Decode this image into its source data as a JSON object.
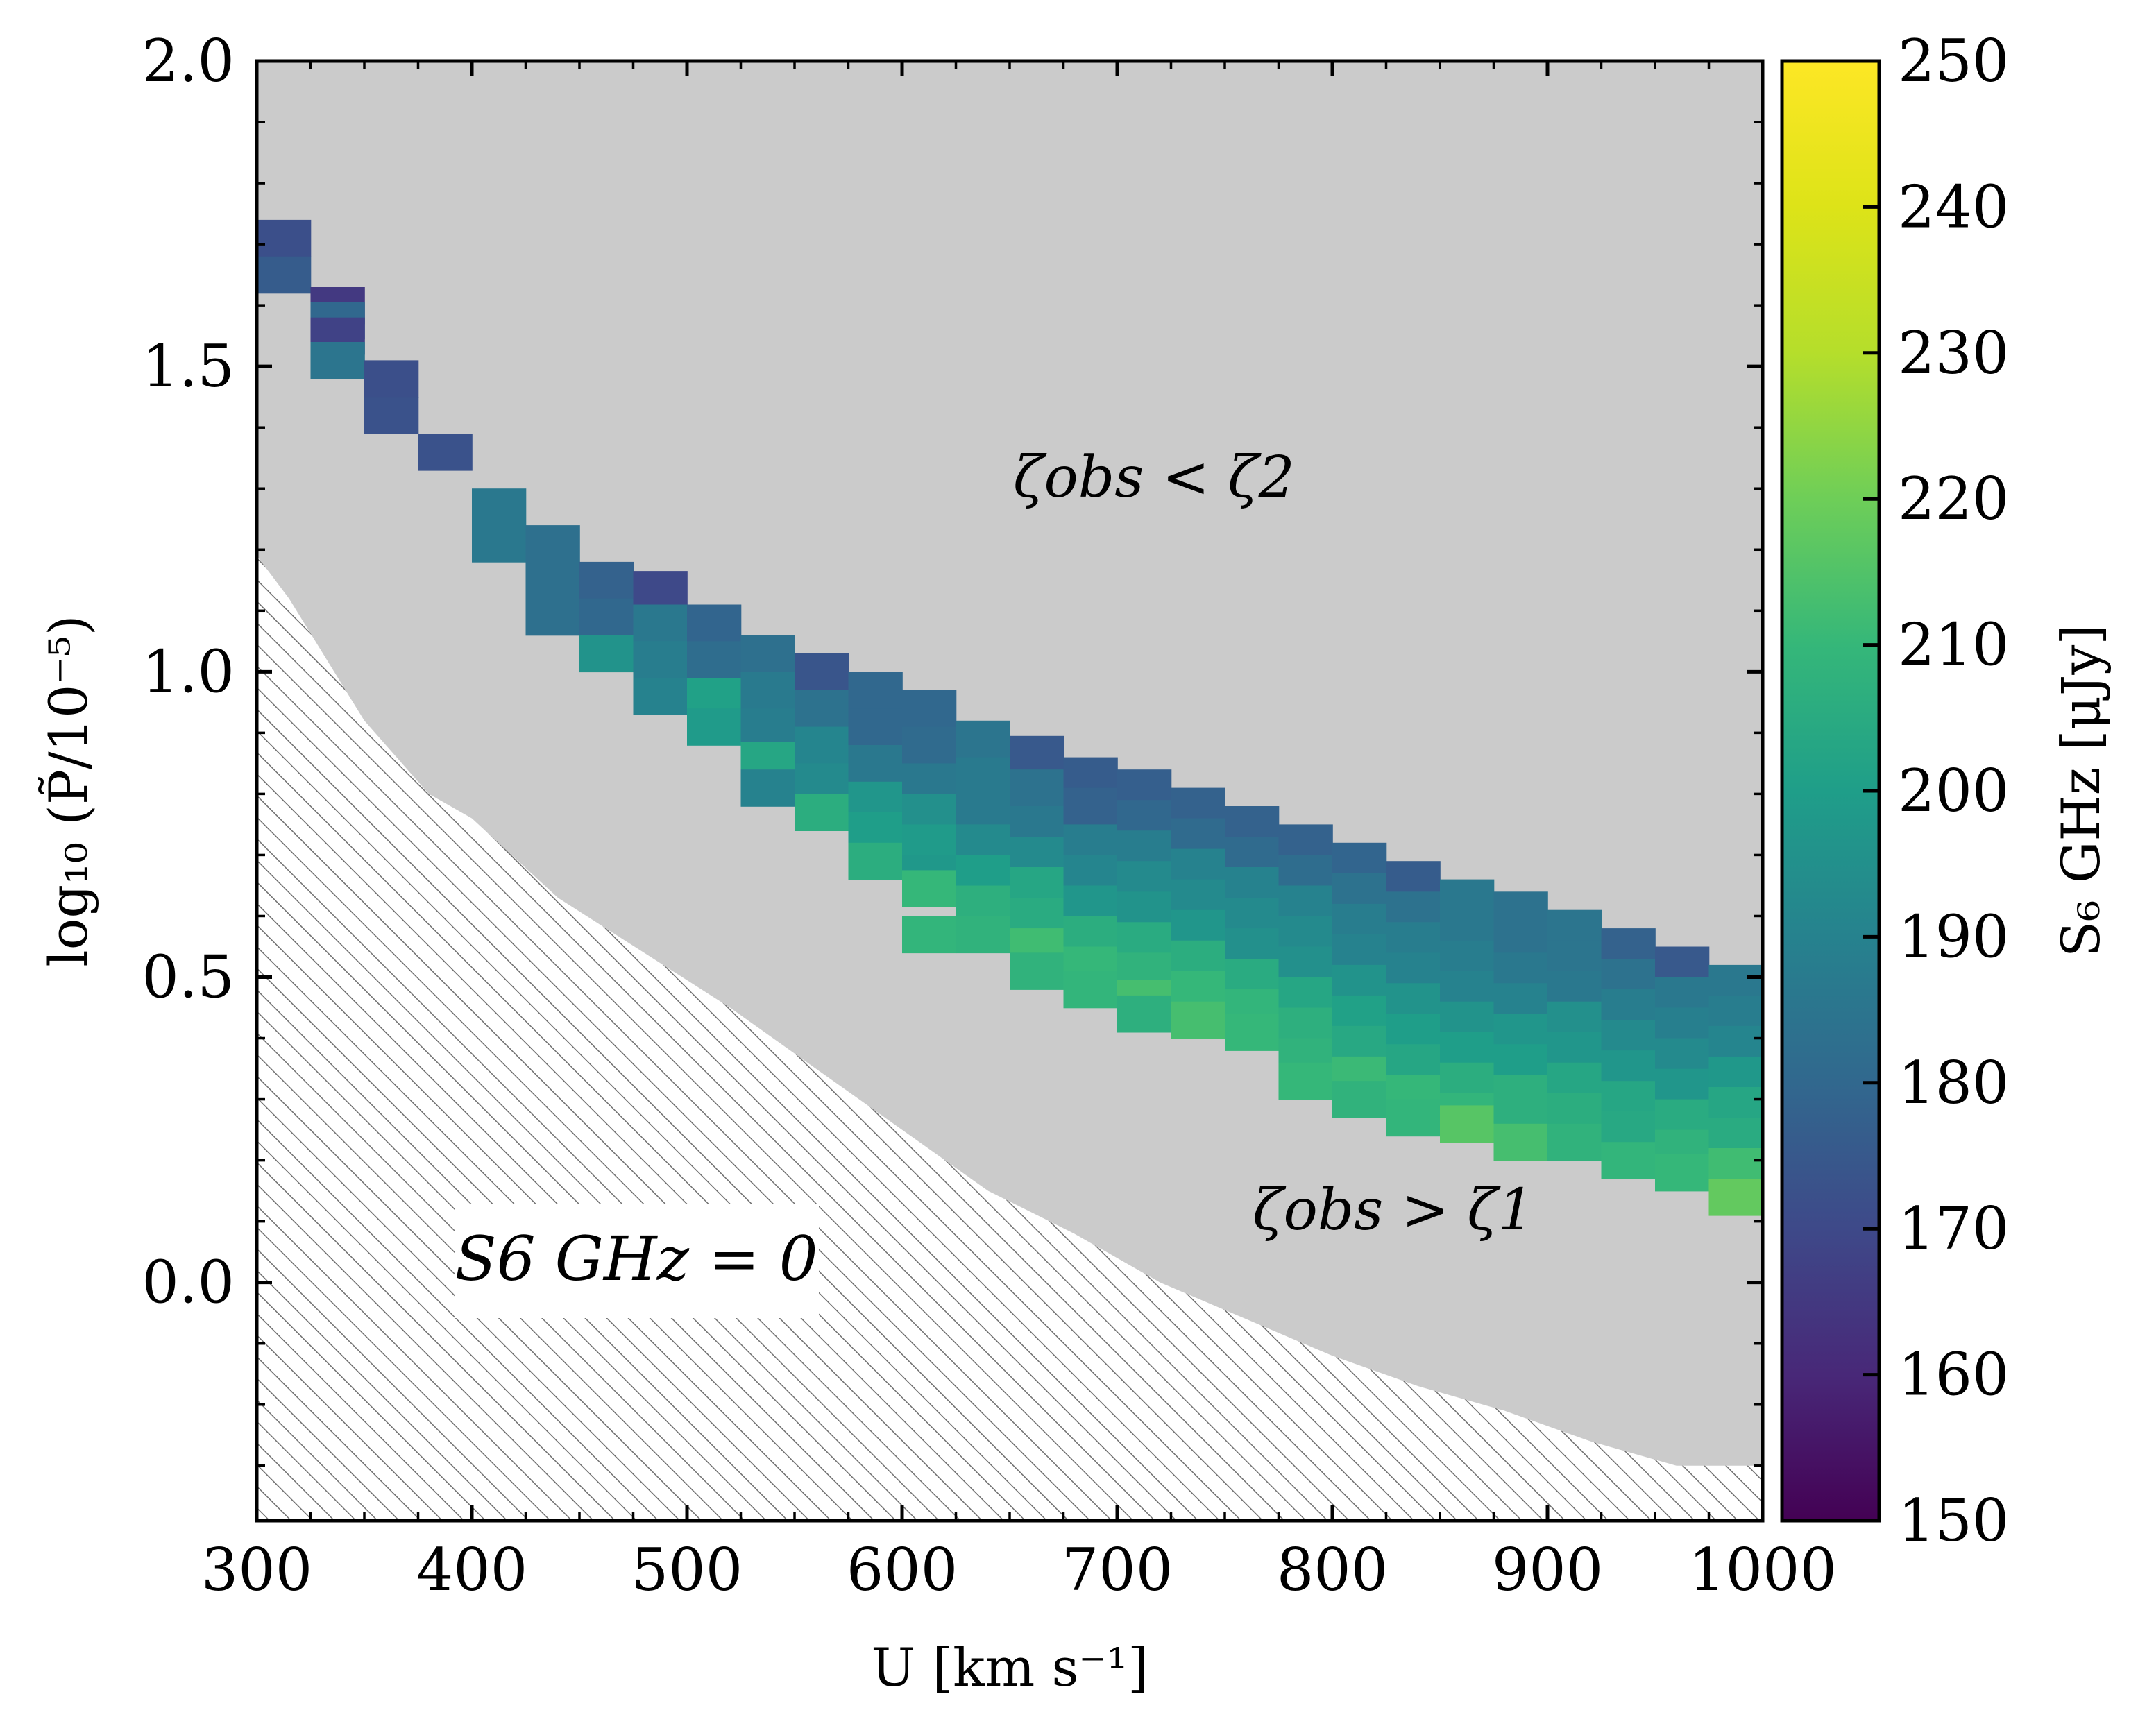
{
  "chart_data": {
    "type": "heatmap",
    "xlabel": "U [km s⁻¹]",
    "ylabel": "log₁₀ (P̃/10⁻⁵)",
    "xlim": [
      300,
      1000
    ],
    "ylim": [
      -0.39,
      2.0
    ],
    "x_ticks": [
      300,
      400,
      500,
      600,
      700,
      800,
      900,
      1000
    ],
    "x_tick_labels": [
      "300",
      "400",
      "500",
      "600",
      "700",
      "800",
      "900",
      "1000"
    ],
    "y_ticks": [
      0.0,
      0.5,
      1.0,
      1.5,
      2.0
    ],
    "y_tick_labels": [
      "0.0",
      "0.5",
      "1.0",
      "1.5",
      "2.0"
    ],
    "colorbar": {
      "label": "S₆ GHz [μJy]",
      "min": 150,
      "max": 250,
      "ticks": [
        150,
        160,
        170,
        180,
        190,
        200,
        210,
        220,
        230,
        240,
        250
      ],
      "tick_labels": [
        "150",
        "160",
        "170",
        "180",
        "190",
        "200",
        "210",
        "220",
        "230",
        "240",
        "250"
      ],
      "colormap": "viridis"
    },
    "annotations": {
      "upper_region": "ζobs < ζ2",
      "lower_region": "ζobs > ζ1",
      "hatched_region": "S6 GHz = 0"
    },
    "cell_width_units": 25,
    "cell_height_units": 0.06,
    "hatched_boundary": {
      "x": [
        300,
        315,
        350,
        380,
        400,
        440,
        480,
        520,
        560,
        600,
        640,
        680,
        720,
        760,
        800,
        840,
        880,
        920,
        960,
        1000
      ],
      "y": [
        1.19,
        1.12,
        0.92,
        0.8,
        0.76,
        0.63,
        0.54,
        0.45,
        0.35,
        0.25,
        0.15,
        0.08,
        0.0,
        -0.06,
        -0.12,
        -0.17,
        -0.21,
        -0.26,
        -0.3,
        -0.3
      ]
    },
    "cells": [
      {
        "x": 300,
        "y": 1.71,
        "v": 172
      },
      {
        "x": 300,
        "y": 1.65,
        "v": 176
      },
      {
        "x": 325,
        "y": 1.6,
        "v": 165
      },
      {
        "x": 325,
        "y": 1.575,
        "v": 180
      },
      {
        "x": 325,
        "y": 1.55,
        "v": 168
      },
      {
        "x": 325,
        "y": 1.51,
        "v": 185
      },
      {
        "x": 350,
        "y": 1.48,
        "v": 172
      },
      {
        "x": 350,
        "y": 1.42,
        "v": 173
      },
      {
        "x": 375,
        "y": 1.36,
        "v": 173
      },
      {
        "x": 400,
        "y": 1.27,
        "v": 186
      },
      {
        "x": 400,
        "y": 1.21,
        "v": 186
      },
      {
        "x": 425,
        "y": 1.21,
        "v": 183
      },
      {
        "x": 425,
        "y": 1.15,
        "v": 183
      },
      {
        "x": 425,
        "y": 1.09,
        "v": 183
      },
      {
        "x": 450,
        "y": 1.15,
        "v": 178
      },
      {
        "x": 450,
        "y": 1.09,
        "v": 180
      },
      {
        "x": 450,
        "y": 1.03,
        "v": 196
      },
      {
        "x": 475,
        "y": 1.135,
        "v": 170
      },
      {
        "x": 475,
        "y": 1.08,
        "v": 186
      },
      {
        "x": 475,
        "y": 1.02,
        "v": 188
      },
      {
        "x": 475,
        "y": 0.96,
        "v": 190
      },
      {
        "x": 500,
        "y": 1.08,
        "v": 179
      },
      {
        "x": 500,
        "y": 1.02,
        "v": 182
      },
      {
        "x": 500,
        "y": 0.96,
        "v": 201
      },
      {
        "x": 500,
        "y": 0.91,
        "v": 199
      },
      {
        "x": 525,
        "y": 1.03,
        "v": 183
      },
      {
        "x": 525,
        "y": 0.97,
        "v": 187
      },
      {
        "x": 525,
        "y": 0.91,
        "v": 188
      },
      {
        "x": 525,
        "y": 0.855,
        "v": 203
      },
      {
        "x": 525,
        "y": 0.81,
        "v": 190
      },
      {
        "x": 550,
        "y": 1.0,
        "v": 174
      },
      {
        "x": 550,
        "y": 0.94,
        "v": 184
      },
      {
        "x": 550,
        "y": 0.88,
        "v": 191
      },
      {
        "x": 550,
        "y": 0.82,
        "v": 193
      },
      {
        "x": 550,
        "y": 0.77,
        "v": 206
      },
      {
        "x": 575,
        "y": 0.97,
        "v": 180
      },
      {
        "x": 575,
        "y": 0.91,
        "v": 180
      },
      {
        "x": 575,
        "y": 0.85,
        "v": 186
      },
      {
        "x": 575,
        "y": 0.79,
        "v": 197
      },
      {
        "x": 575,
        "y": 0.74,
        "v": 200
      },
      {
        "x": 575,
        "y": 0.69,
        "v": 206
      },
      {
        "x": 600,
        "y": 0.94,
        "v": 180
      },
      {
        "x": 600,
        "y": 0.88,
        "v": 181
      },
      {
        "x": 600,
        "y": 0.82,
        "v": 186
      },
      {
        "x": 600,
        "y": 0.77,
        "v": 195
      },
      {
        "x": 600,
        "y": 0.72,
        "v": 199
      },
      {
        "x": 600,
        "y": 0.67,
        "v": 198
      },
      {
        "x": 600,
        "y": 0.645,
        "v": 210
      },
      {
        "x": 600,
        "y": 0.57,
        "v": 209
      },
      {
        "x": 625,
        "y": 0.89,
        "v": 185
      },
      {
        "x": 625,
        "y": 0.83,
        "v": 187
      },
      {
        "x": 625,
        "y": 0.77,
        "v": 187
      },
      {
        "x": 625,
        "y": 0.72,
        "v": 193
      },
      {
        "x": 625,
        "y": 0.67,
        "v": 200
      },
      {
        "x": 625,
        "y": 0.62,
        "v": 207
      },
      {
        "x": 625,
        "y": 0.57,
        "v": 208
      },
      {
        "x": 650,
        "y": 0.865,
        "v": 175
      },
      {
        "x": 650,
        "y": 0.81,
        "v": 184
      },
      {
        "x": 650,
        "y": 0.75,
        "v": 186
      },
      {
        "x": 650,
        "y": 0.7,
        "v": 193
      },
      {
        "x": 650,
        "y": 0.65,
        "v": 203
      },
      {
        "x": 650,
        "y": 0.6,
        "v": 205
      },
      {
        "x": 650,
        "y": 0.55,
        "v": 212
      },
      {
        "x": 650,
        "y": 0.51,
        "v": 208
      },
      {
        "x": 675,
        "y": 0.83,
        "v": 176
      },
      {
        "x": 675,
        "y": 0.78,
        "v": 178
      },
      {
        "x": 675,
        "y": 0.72,
        "v": 188
      },
      {
        "x": 675,
        "y": 0.67,
        "v": 191
      },
      {
        "x": 675,
        "y": 0.62,
        "v": 197
      },
      {
        "x": 675,
        "y": 0.57,
        "v": 206
      },
      {
        "x": 675,
        "y": 0.52,
        "v": 210
      },
      {
        "x": 675,
        "y": 0.48,
        "v": 209
      },
      {
        "x": 700,
        "y": 0.81,
        "v": 177
      },
      {
        "x": 700,
        "y": 0.76,
        "v": 180
      },
      {
        "x": 700,
        "y": 0.71,
        "v": 188
      },
      {
        "x": 700,
        "y": 0.66,
        "v": 193
      },
      {
        "x": 700,
        "y": 0.61,
        "v": 196
      },
      {
        "x": 700,
        "y": 0.56,
        "v": 205
      },
      {
        "x": 700,
        "y": 0.51,
        "v": 208
      },
      {
        "x": 700,
        "y": 0.465,
        "v": 213
      },
      {
        "x": 700,
        "y": 0.44,
        "v": 207
      },
      {
        "x": 725,
        "y": 0.78,
        "v": 178
      },
      {
        "x": 725,
        "y": 0.73,
        "v": 181
      },
      {
        "x": 725,
        "y": 0.68,
        "v": 190
      },
      {
        "x": 725,
        "y": 0.63,
        "v": 193
      },
      {
        "x": 725,
        "y": 0.58,
        "v": 197
      },
      {
        "x": 725,
        "y": 0.53,
        "v": 206
      },
      {
        "x": 725,
        "y": 0.48,
        "v": 210
      },
      {
        "x": 725,
        "y": 0.43,
        "v": 213
      },
      {
        "x": 750,
        "y": 0.75,
        "v": 178
      },
      {
        "x": 750,
        "y": 0.7,
        "v": 181
      },
      {
        "x": 750,
        "y": 0.65,
        "v": 190
      },
      {
        "x": 750,
        "y": 0.6,
        "v": 193
      },
      {
        "x": 750,
        "y": 0.55,
        "v": 195
      },
      {
        "x": 750,
        "y": 0.5,
        "v": 205
      },
      {
        "x": 750,
        "y": 0.45,
        "v": 209
      },
      {
        "x": 750,
        "y": 0.41,
        "v": 210
      },
      {
        "x": 775,
        "y": 0.72,
        "v": 178
      },
      {
        "x": 775,
        "y": 0.67,
        "v": 182
      },
      {
        "x": 775,
        "y": 0.62,
        "v": 190
      },
      {
        "x": 775,
        "y": 0.57,
        "v": 193
      },
      {
        "x": 775,
        "y": 0.52,
        "v": 195
      },
      {
        "x": 775,
        "y": 0.47,
        "v": 203
      },
      {
        "x": 775,
        "y": 0.42,
        "v": 207
      },
      {
        "x": 775,
        "y": 0.37,
        "v": 208
      },
      {
        "x": 775,
        "y": 0.33,
        "v": 210
      },
      {
        "x": 800,
        "y": 0.69,
        "v": 179
      },
      {
        "x": 800,
        "y": 0.64,
        "v": 184
      },
      {
        "x": 800,
        "y": 0.59,
        "v": 188
      },
      {
        "x": 800,
        "y": 0.54,
        "v": 190
      },
      {
        "x": 800,
        "y": 0.49,
        "v": 196
      },
      {
        "x": 800,
        "y": 0.44,
        "v": 201
      },
      {
        "x": 800,
        "y": 0.39,
        "v": 204
      },
      {
        "x": 800,
        "y": 0.34,
        "v": 211
      },
      {
        "x": 800,
        "y": 0.3,
        "v": 208
      },
      {
        "x": 825,
        "y": 0.66,
        "v": 176
      },
      {
        "x": 825,
        "y": 0.61,
        "v": 184
      },
      {
        "x": 825,
        "y": 0.56,
        "v": 188
      },
      {
        "x": 825,
        "y": 0.51,
        "v": 190
      },
      {
        "x": 825,
        "y": 0.46,
        "v": 196
      },
      {
        "x": 825,
        "y": 0.41,
        "v": 200
      },
      {
        "x": 825,
        "y": 0.36,
        "v": 203
      },
      {
        "x": 825,
        "y": 0.31,
        "v": 210
      },
      {
        "x": 825,
        "y": 0.27,
        "v": 209
      },
      {
        "x": 850,
        "y": 0.63,
        "v": 186
      },
      {
        "x": 850,
        "y": 0.58,
        "v": 186
      },
      {
        "x": 850,
        "y": 0.53,
        "v": 188
      },
      {
        "x": 850,
        "y": 0.48,
        "v": 190
      },
      {
        "x": 850,
        "y": 0.43,
        "v": 196
      },
      {
        "x": 850,
        "y": 0.38,
        "v": 200
      },
      {
        "x": 850,
        "y": 0.33,
        "v": 206
      },
      {
        "x": 850,
        "y": 0.28,
        "v": 209
      },
      {
        "x": 850,
        "y": 0.26,
        "v": 216
      },
      {
        "x": 875,
        "y": 0.61,
        "v": 184
      },
      {
        "x": 875,
        "y": 0.56,
        "v": 184
      },
      {
        "x": 875,
        "y": 0.51,
        "v": 186
      },
      {
        "x": 875,
        "y": 0.46,
        "v": 190
      },
      {
        "x": 875,
        "y": 0.41,
        "v": 197
      },
      {
        "x": 875,
        "y": 0.36,
        "v": 200
      },
      {
        "x": 875,
        "y": 0.31,
        "v": 207
      },
      {
        "x": 875,
        "y": 0.26,
        "v": 207
      },
      {
        "x": 875,
        "y": 0.23,
        "v": 213
      },
      {
        "x": 900,
        "y": 0.58,
        "v": 185
      },
      {
        "x": 900,
        "y": 0.53,
        "v": 185
      },
      {
        "x": 900,
        "y": 0.48,
        "v": 186
      },
      {
        "x": 900,
        "y": 0.43,
        "v": 195
      },
      {
        "x": 900,
        "y": 0.38,
        "v": 197
      },
      {
        "x": 900,
        "y": 0.33,
        "v": 203
      },
      {
        "x": 900,
        "y": 0.28,
        "v": 206
      },
      {
        "x": 900,
        "y": 0.23,
        "v": 208
      },
      {
        "x": 925,
        "y": 0.55,
        "v": 178
      },
      {
        "x": 925,
        "y": 0.5,
        "v": 184
      },
      {
        "x": 925,
        "y": 0.45,
        "v": 188
      },
      {
        "x": 925,
        "y": 0.4,
        "v": 193
      },
      {
        "x": 925,
        "y": 0.35,
        "v": 197
      },
      {
        "x": 925,
        "y": 0.3,
        "v": 203
      },
      {
        "x": 925,
        "y": 0.25,
        "v": 204
      },
      {
        "x": 925,
        "y": 0.2,
        "v": 209
      },
      {
        "x": 950,
        "y": 0.52,
        "v": 175
      },
      {
        "x": 950,
        "y": 0.47,
        "v": 186
      },
      {
        "x": 950,
        "y": 0.42,
        "v": 189
      },
      {
        "x": 950,
        "y": 0.37,
        "v": 193
      },
      {
        "x": 950,
        "y": 0.32,
        "v": 197
      },
      {
        "x": 950,
        "y": 0.27,
        "v": 205
      },
      {
        "x": 950,
        "y": 0.22,
        "v": 208
      },
      {
        "x": 950,
        "y": 0.18,
        "v": 210
      },
      {
        "x": 975,
        "y": 0.49,
        "v": 186
      },
      {
        "x": 975,
        "y": 0.44,
        "v": 188
      },
      {
        "x": 975,
        "y": 0.39,
        "v": 191
      },
      {
        "x": 975,
        "y": 0.34,
        "v": 198
      },
      {
        "x": 975,
        "y": 0.29,
        "v": 203
      },
      {
        "x": 975,
        "y": 0.24,
        "v": 205
      },
      {
        "x": 975,
        "y": 0.19,
        "v": 212
      },
      {
        "x": 975,
        "y": 0.14,
        "v": 218
      }
    ]
  }
}
